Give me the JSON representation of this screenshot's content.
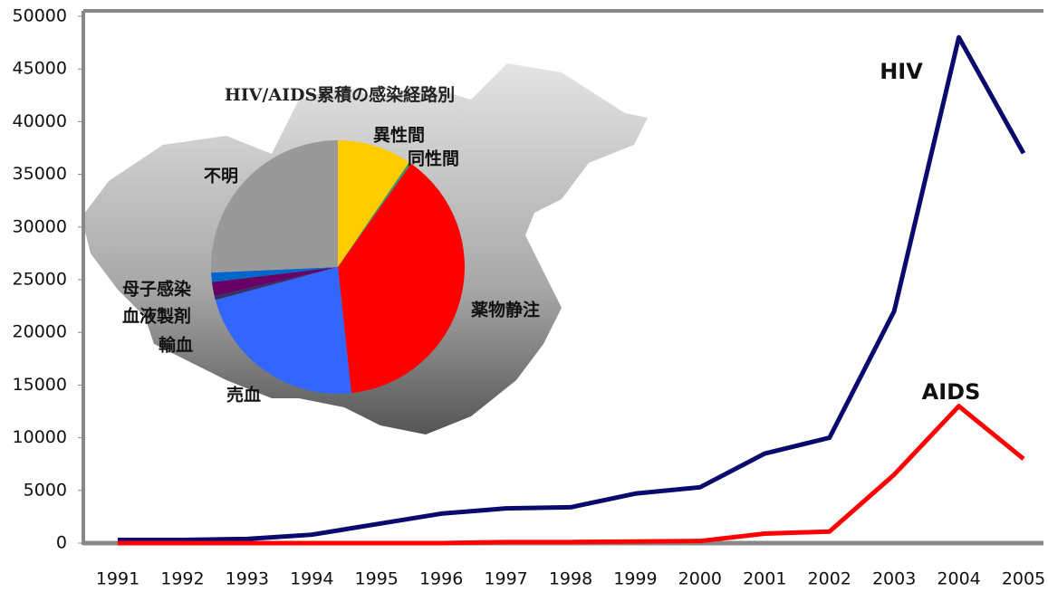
{
  "chart_data": [
    {
      "type": "line",
      "categories": [
        "1991",
        "1992",
        "1993",
        "1994",
        "1995",
        "1996",
        "1997",
        "1998",
        "1999",
        "2000",
        "2001",
        "2002",
        "2003",
        "2004",
        "2005"
      ],
      "series": [
        {
          "name": "HIV",
          "color": "#0a0a6e",
          "values": [
            300,
            300,
            400,
            800,
            1800,
            2800,
            3300,
            3400,
            4700,
            5300,
            8500,
            10000,
            22000,
            48000,
            37000
          ]
        },
        {
          "name": "AIDS",
          "color": "#ff0000",
          "values": [
            0,
            0,
            0,
            0,
            0,
            0,
            100,
            100,
            150,
            200,
            900,
            1100,
            6500,
            13000,
            8000
          ]
        }
      ],
      "ylim": [
        0,
        50000
      ],
      "yticks": [
        0,
        5000,
        10000,
        15000,
        20000,
        25000,
        30000,
        35000,
        40000,
        45000,
        50000
      ]
    },
    {
      "type": "pie",
      "title": "HIV/AIDS累積の感染経路別",
      "categories": [
        "異性間",
        "同性間",
        "薬物静注",
        "売血",
        "輸血",
        "血液製剤",
        "母子感染",
        "不明"
      ],
      "values": [
        9.5,
        0.3,
        38.5,
        22.5,
        0.5,
        1.8,
        1.2,
        25.7
      ],
      "colors": [
        "#ffcc00",
        "#339966",
        "#ff0000",
        "#3366ff",
        "#333366",
        "#660066",
        "#0066cc",
        "#999999"
      ]
    }
  ]
}
